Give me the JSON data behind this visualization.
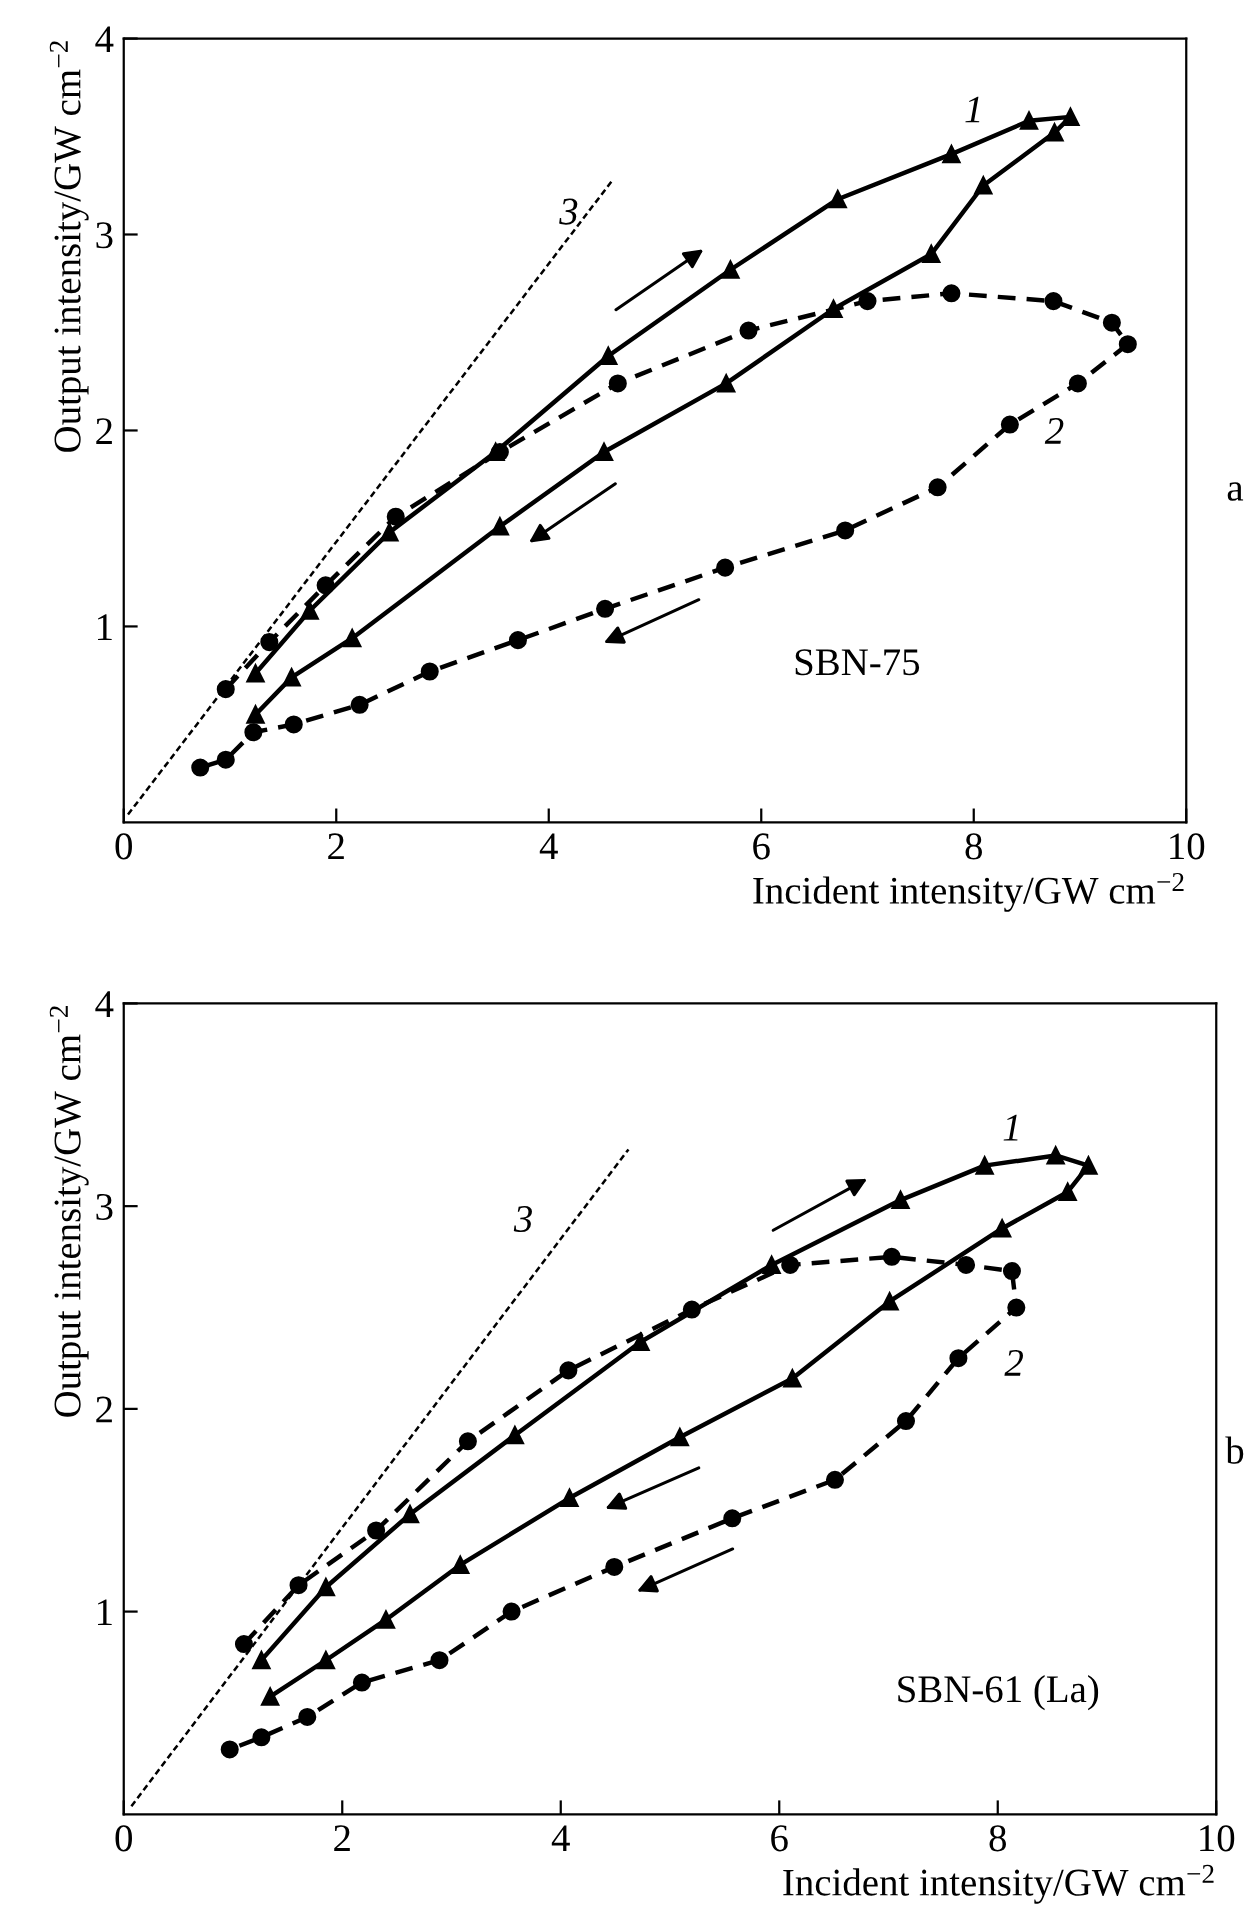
{
  "chart_data": [
    {
      "type": "line",
      "xlabel": "Incident intensity/GW cm$^{−2}$",
      "ylabel": "Output intensity/GW cm$^{−2}$",
      "xlim": [
        0,
        10
      ],
      "ylim": [
        0,
        4
      ],
      "xticks": [
        0,
        2,
        4,
        6,
        8,
        10
      ],
      "yticks": [
        1,
        2,
        3,
        4
      ],
      "grid": false,
      "legend": false,
      "series": [
        {
          "color": "#000000",
          "marker": "triangle",
          "line_style": "solid",
          "x": [
            1.24,
            1.75,
            2.5,
            3.5,
            4.56,
            5.71,
            6.72,
            7.79,
            8.52,
            8.91,
            8.76,
            8.09,
            7.6,
            6.68,
            5.67,
            4.52,
            3.54,
            2.15,
            1.58,
            1.24
          ],
          "values": [
            0.76,
            1.08,
            1.48,
            1.89,
            2.38,
            2.82,
            3.18,
            3.41,
            3.58,
            3.6,
            3.52,
            3.25,
            2.9,
            2.62,
            2.24,
            1.89,
            1.51,
            0.94,
            0.74,
            0.55
          ]
        },
        {
          "color": "#000000",
          "marker": "circle",
          "line_style": "dashed",
          "x": [
            0.96,
            1.37,
            1.9,
            2.56,
            3.54,
            4.65,
            5.88,
            7.0,
            7.79,
            8.75,
            9.3,
            9.45,
            8.98,
            8.34,
            7.66,
            6.79,
            5.66,
            4.53,
            3.71,
            2.88,
            2.22,
            1.6,
            1.22,
            0.96,
            0.72
          ],
          "values": [
            0.68,
            0.92,
            1.21,
            1.56,
            1.89,
            2.24,
            2.51,
            2.66,
            2.7,
            2.66,
            2.55,
            2.44,
            2.24,
            2.03,
            1.71,
            1.49,
            1.3,
            1.09,
            0.93,
            0.77,
            0.6,
            0.5,
            0.46,
            0.32,
            0.28
          ]
        },
        {
          "color": "#000000",
          "marker": "none",
          "line_style": "dotted",
          "x": [
            0.04,
            4.59
          ],
          "values": [
            0.04,
            3.27
          ]
        }
      ],
      "annotations": [
        "1",
        "2",
        "3",
        "SBN-75",
        "a"
      ]
    },
    {
      "type": "line",
      "xlabel": "Incident intensity/GW cm$^{−2}$",
      "ylabel": "Output intensity/GW cm$^{−2}$",
      "xlim": [
        0,
        10
      ],
      "ylim": [
        0,
        4
      ],
      "xticks": [
        0,
        2,
        4,
        6,
        8,
        10
      ],
      "yticks": [
        1,
        2,
        3,
        4
      ],
      "grid": false,
      "legend": false,
      "series": [
        {
          "color": "#000000",
          "marker": "triangle",
          "line_style": "solid",
          "x": [
            1.26,
            1.85,
            2.62,
            3.58,
            4.73,
            5.93,
            7.11,
            7.88,
            8.53,
            8.83,
            8.64,
            8.04,
            7.01,
            6.12,
            5.09,
            4.08,
            3.08,
            2.4,
            1.85,
            1.34
          ],
          "values": [
            0.76,
            1.12,
            1.48,
            1.87,
            2.33,
            2.71,
            3.03,
            3.2,
            3.25,
            3.2,
            3.07,
            2.89,
            2.53,
            2.15,
            1.86,
            1.56,
            1.23,
            0.96,
            0.76,
            0.58
          ]
        },
        {
          "color": "#000000",
          "marker": "circle",
          "line_style": "dashed",
          "x": [
            1.1,
            1.6,
            2.31,
            3.15,
            4.07,
            5.2,
            6.1,
            7.03,
            7.71,
            8.13,
            8.17,
            7.64,
            7.16,
            6.51,
            5.57,
            4.49,
            3.55,
            2.89,
            2.18,
            1.68,
            1.26,
            0.97
          ],
          "values": [
            0.84,
            1.13,
            1.4,
            1.84,
            2.19,
            2.49,
            2.71,
            2.75,
            2.71,
            2.68,
            2.5,
            2.25,
            1.94,
            1.65,
            1.46,
            1.22,
            1.0,
            0.76,
            0.65,
            0.48,
            0.38,
            0.32
          ]
        },
        {
          "color": "#000000",
          "marker": "none",
          "line_style": "dotted",
          "x": [
            0.07,
            4.62
          ],
          "values": [
            0.04,
            3.28
          ]
        }
      ],
      "annotations": [
        "1",
        "2",
        "3",
        "SBN-61 (La)",
        "b"
      ]
    }
  ]
}
